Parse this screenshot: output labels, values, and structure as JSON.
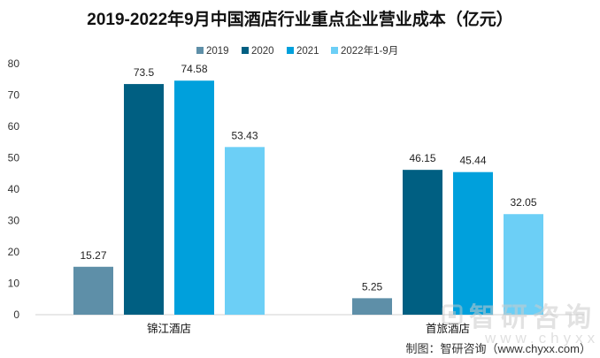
{
  "chart_data": {
    "type": "bar",
    "title": "2019-2022年9月中国酒店行业重点企业营业成本（亿元）",
    "categories": [
      "锦江酒店",
      "首旅酒店"
    ],
    "series": [
      {
        "name": "2019",
        "values": [
          15.27,
          5.25
        ],
        "color": "#5e8fa8"
      },
      {
        "name": "2020",
        "values": [
          73.5,
          46.15
        ],
        "color": "#005f82"
      },
      {
        "name": "2021",
        "values": [
          74.58,
          45.44
        ],
        "color": "#00a0dc"
      },
      {
        "name": "2022年1-9月",
        "values": [
          53.43,
          32.05
        ],
        "color": "#6ccff6"
      }
    ],
    "data_labels": [
      [
        "15.27",
        "73.5",
        "74.58",
        "53.43"
      ],
      [
        "5.25",
        "46.15",
        "45.44",
        "32.05"
      ]
    ],
    "ylim": [
      0,
      80
    ],
    "yticks": [
      0,
      10,
      20,
      30,
      40,
      50,
      60,
      70,
      80
    ],
    "grid": false,
    "legend_position": "top"
  },
  "source": "制图：智研咨询（www.chyxx.com）",
  "watermark": {
    "name": "智研咨询",
    "url": "www.chyxx.com"
  }
}
